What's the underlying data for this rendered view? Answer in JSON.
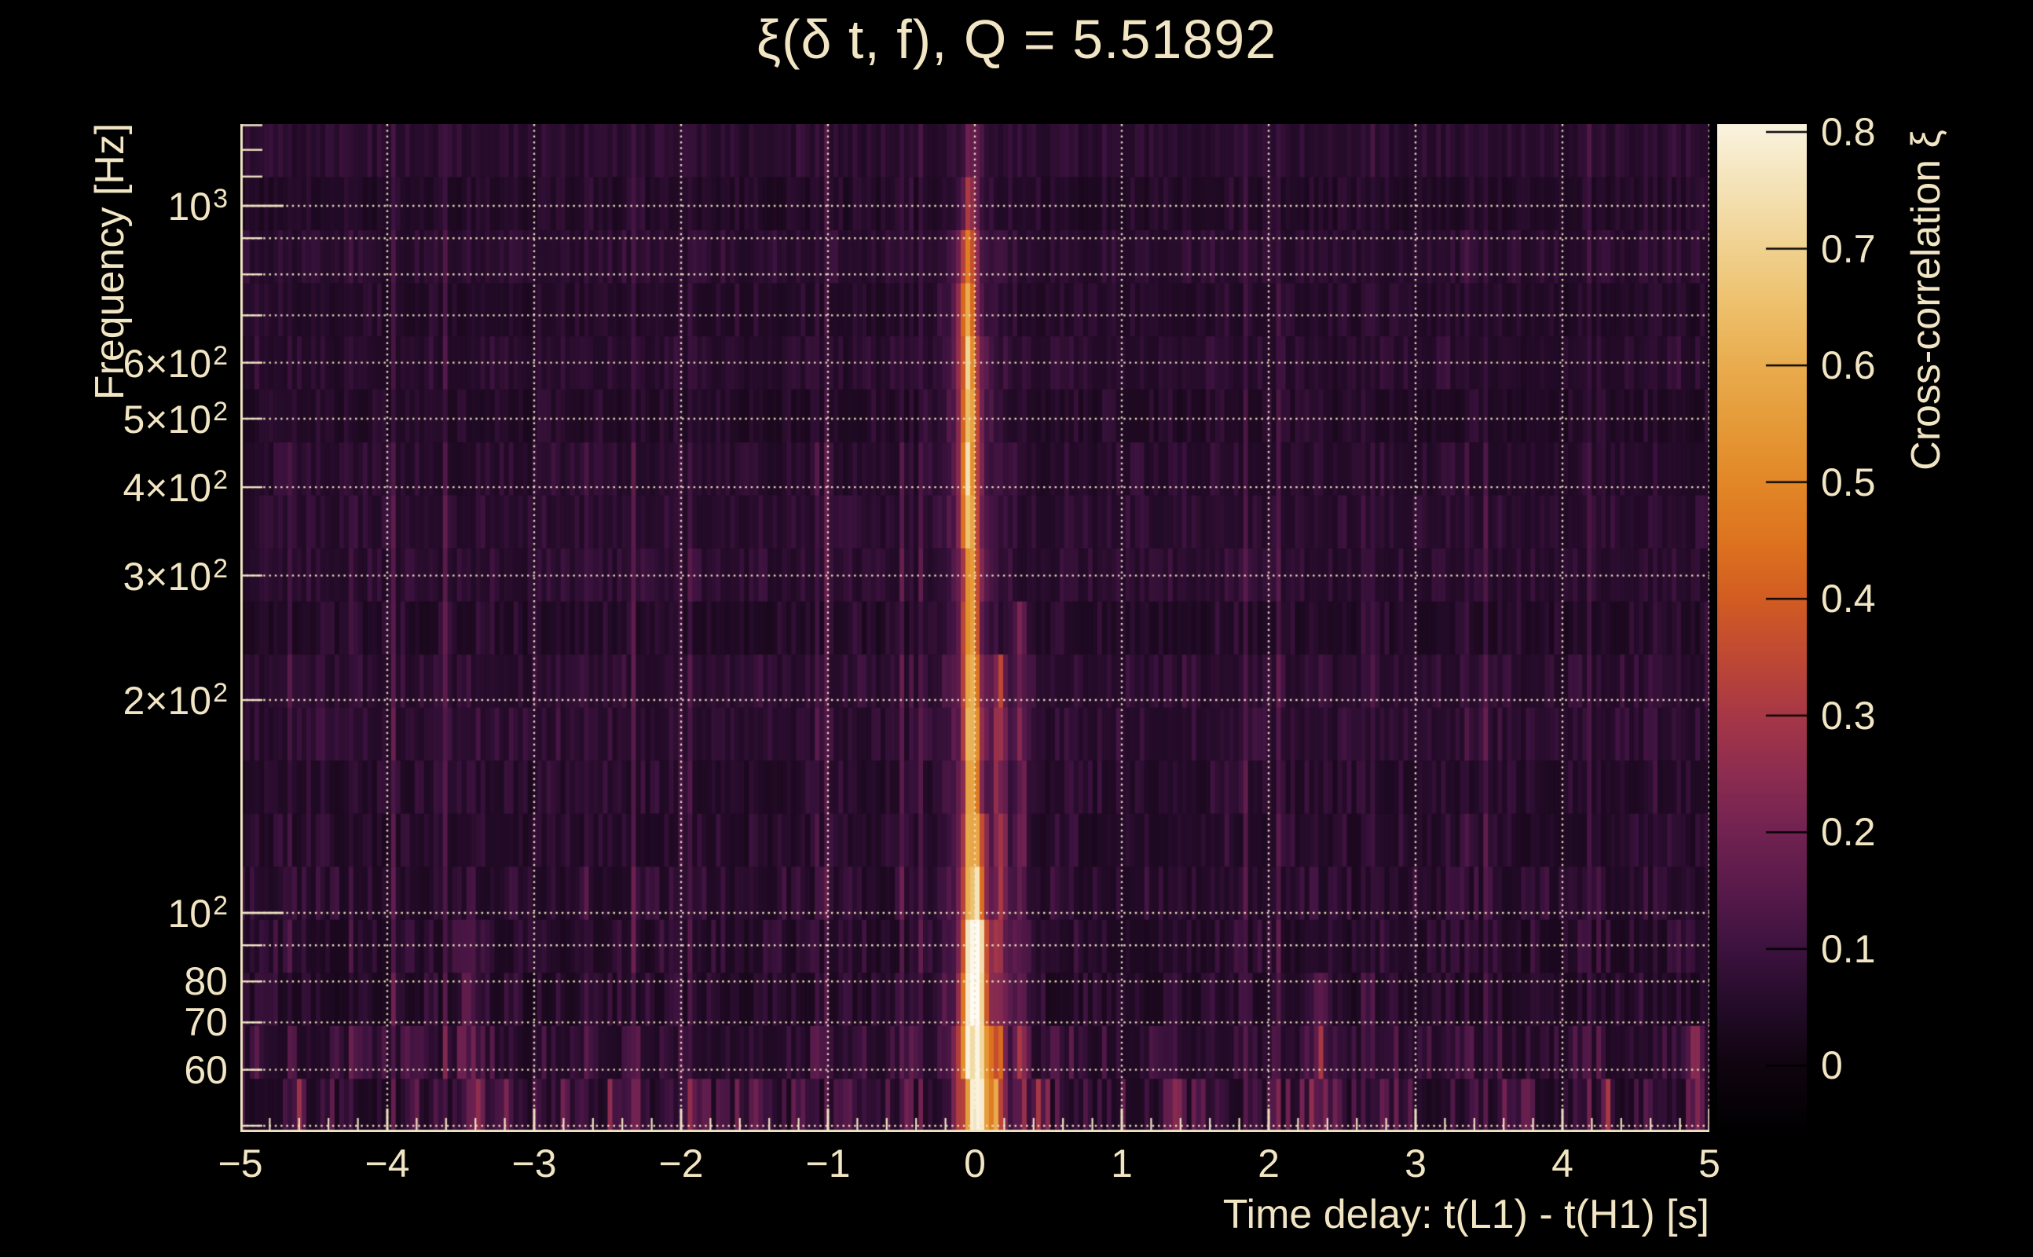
{
  "title": {
    "text": "ξ(δ t, f), Q = 5.51892"
  },
  "axes": {
    "x": {
      "title": "Time delay: t(L1) - t(H1) [s]",
      "min": -5,
      "max": 5,
      "minor_step": 0.2,
      "tick_labels": [
        {
          "t": -5,
          "label": "−5"
        },
        {
          "t": -4,
          "label": "−4"
        },
        {
          "t": -3,
          "label": "−3"
        },
        {
          "t": -2,
          "label": "−2"
        },
        {
          "t": -1,
          "label": "−1"
        },
        {
          "t": 0,
          "label": "0"
        },
        {
          "t": 1,
          "label": "1"
        },
        {
          "t": 2,
          "label": "2"
        },
        {
          "t": 3,
          "label": "3"
        },
        {
          "t": 4,
          "label": "4"
        },
        {
          "t": 5,
          "label": "5"
        }
      ]
    },
    "y": {
      "title": "Frequency [Hz]",
      "scale": "log",
      "min": 49,
      "max": 1305,
      "tick_labels": [
        {
          "f": 1000,
          "base": "10",
          "sup": "3"
        },
        {
          "f": 600,
          "base": "6×10",
          "sup": "2"
        },
        {
          "f": 500,
          "base": "5×10",
          "sup": "2"
        },
        {
          "f": 400,
          "base": "4×10",
          "sup": "2"
        },
        {
          "f": 300,
          "base": "3×10",
          "sup": "2"
        },
        {
          "f": 200,
          "base": "2×10",
          "sup": "2"
        },
        {
          "f": 100,
          "base": "10",
          "sup": "2"
        },
        {
          "f": 80,
          "base": "80",
          "sup": ""
        },
        {
          "f": 70,
          "base": "70",
          "sup": ""
        },
        {
          "f": 60,
          "base": "60",
          "sup": ""
        }
      ],
      "minor_ticks": [
        50,
        60,
        70,
        80,
        90,
        200,
        300,
        400,
        500,
        600,
        700,
        800,
        900,
        1100,
        1200,
        1300
      ],
      "major_ticks": [
        100,
        1000
      ]
    },
    "colorbar": {
      "title": "Cross-correlation ξ",
      "min": -0.055,
      "max": 0.807,
      "tick_labels": [
        {
          "v": 0.8,
          "label": "0.8"
        },
        {
          "v": 0.7,
          "label": "0.7"
        },
        {
          "v": 0.6,
          "label": "0.6"
        },
        {
          "v": 0.5,
          "label": "0.5"
        },
        {
          "v": 0.4,
          "label": "0.4"
        },
        {
          "v": 0.3,
          "label": "0.3"
        },
        {
          "v": 0.2,
          "label": "0.2"
        },
        {
          "v": 0.1,
          "label": "0.1"
        },
        {
          "v": 0,
          "label": "0"
        }
      ]
    }
  },
  "chart_data": {
    "type": "heatmap",
    "title": "ξ(δ t, f), Q = 5.51892",
    "Q": 5.51892,
    "xlabel": "Time delay: t(L1) - t(H1) [s]",
    "ylabel": "Frequency [Hz]",
    "zlabel": "Cross-correlation ξ",
    "xlim": [
      -5,
      5
    ],
    "ylim_hz": [
      49,
      1305
    ],
    "zlim": [
      -0.055,
      0.807
    ],
    "x_gridlines": [
      -5,
      -4,
      -3,
      -2,
      -1,
      0,
      1,
      2,
      3,
      4,
      5
    ],
    "y_gridlines_hz": [
      50,
      60,
      70,
      80,
      90,
      100,
      200,
      300,
      400,
      500,
      600,
      700,
      800,
      900,
      1000
    ],
    "grid_style": "dotted-cream",
    "background_xi_range": [
      0.0,
      0.12
    ],
    "colormap": [
      [
        -0.06,
        "#000000"
      ],
      [
        0.0,
        "#0f040f"
      ],
      [
        0.05,
        "#230b28"
      ],
      [
        0.1,
        "#3c123e"
      ],
      [
        0.15,
        "#571a4a"
      ],
      [
        0.2,
        "#712251"
      ],
      [
        0.25,
        "#8c2c50"
      ],
      [
        0.3,
        "#a63746"
      ],
      [
        0.35,
        "#bf4834"
      ],
      [
        0.4,
        "#d25c22"
      ],
      [
        0.45,
        "#dd731f"
      ],
      [
        0.5,
        "#e28727"
      ],
      [
        0.55,
        "#e59a38"
      ],
      [
        0.6,
        "#e9ac4e"
      ],
      [
        0.65,
        "#edbf6a"
      ],
      [
        0.7,
        "#f0d18f"
      ],
      [
        0.75,
        "#f4e1b4"
      ],
      [
        0.8,
        "#f9f1da"
      ],
      [
        0.86,
        "#fefcf6"
      ]
    ],
    "ridge": {
      "description": "bright vertical cross-correlation ridge at zero time delay",
      "delta_t_s": 0.0,
      "sigma_t_s": 0.045,
      "peak_xi": 0.85,
      "peak_frequency_hz": 80,
      "profile_f_xi_center": [
        [
          49,
          0.5,
          0.05
        ],
        [
          55,
          0.62,
          0.02
        ],
        [
          62,
          0.58,
          0.0
        ],
        [
          70,
          0.8,
          0.0
        ],
        [
          80,
          0.85,
          0.0
        ],
        [
          90,
          0.74,
          0.0
        ],
        [
          100,
          0.62,
          -0.01
        ],
        [
          115,
          0.5,
          -0.01
        ],
        [
          140,
          0.45,
          -0.02
        ],
        [
          170,
          0.5,
          -0.02
        ],
        [
          200,
          0.45,
          -0.02
        ],
        [
          250,
          0.42,
          -0.03
        ],
        [
          300,
          0.4,
          -0.03
        ],
        [
          350,
          0.44,
          -0.04
        ],
        [
          420,
          0.5,
          -0.04
        ],
        [
          500,
          0.52,
          -0.04
        ],
        [
          600,
          0.48,
          -0.04
        ],
        [
          700,
          0.42,
          -0.05
        ],
        [
          800,
          0.34,
          -0.05
        ],
        [
          900,
          0.28,
          -0.04
        ],
        [
          1000,
          0.2,
          -0.03
        ],
        [
          1100,
          0.13,
          -0.02
        ],
        [
          1200,
          0.09,
          -0.01
        ],
        [
          1300,
          0.07,
          0.0
        ]
      ]
    },
    "secondary_features": [
      {
        "t": 0.17,
        "amp": 0.2,
        "sigma": 0.03,
        "fmax": 220
      },
      {
        "t": 0.31,
        "amp": 0.14,
        "sigma": 0.03,
        "fmax": 260
      },
      {
        "t": 2.35,
        "amp": 0.11,
        "sigma": 0.05,
        "fmax": 85
      },
      {
        "t": -3.45,
        "amp": 0.1,
        "sigma": 0.05,
        "fmax": 90
      },
      {
        "t": -4.6,
        "amp": 0.2,
        "sigma": 0.025,
        "fmax": 58
      },
      {
        "t": -3.2,
        "amp": 0.15,
        "sigma": 0.025,
        "fmax": 58
      },
      {
        "t": -2.45,
        "amp": 0.11,
        "sigma": 0.03,
        "fmax": 58
      },
      {
        "t": -0.85,
        "amp": 0.11,
        "sigma": 0.03,
        "fmax": 56
      },
      {
        "t": 0.45,
        "amp": 0.18,
        "sigma": 0.028,
        "fmax": 58
      },
      {
        "t": 1.35,
        "amp": 0.11,
        "sigma": 0.03,
        "fmax": 56
      },
      {
        "t": 1.9,
        "amp": 0.09,
        "sigma": 0.03,
        "fmax": 56
      },
      {
        "t": 2.79,
        "amp": 0.13,
        "sigma": 0.03,
        "fmax": 58
      },
      {
        "t": 3.6,
        "amp": 0.09,
        "sigma": 0.03,
        "fmax": 56
      },
      {
        "t": 4.3,
        "amp": 0.11,
        "sigma": 0.03,
        "fmax": 56
      },
      {
        "t": 4.92,
        "amp": 0.2,
        "sigma": 0.03,
        "fmax": 70
      }
    ],
    "noise_seed": 987654321,
    "n_rows": 19,
    "n_cols": 312
  },
  "style": {
    "text_color": "#f1e5c3",
    "grid_color": "#efe3c3",
    "axis_color": "#efe3c2",
    "background": "#000000"
  }
}
